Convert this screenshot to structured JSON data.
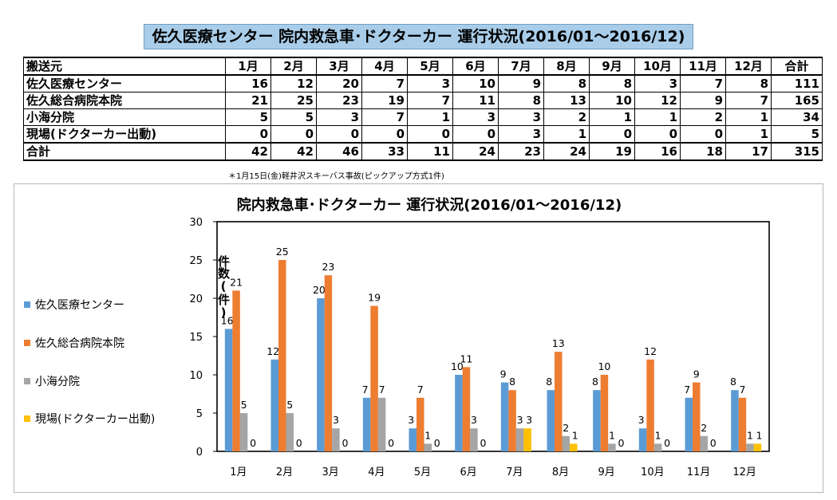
{
  "page": {
    "title": "佐久医療センター 院内救急車･ドクターカー 運行状況(2016/01～2016/12)",
    "footnote": "＊1月15日(金)軽井沢スキーバス事故(ピックアップ方式1件)"
  },
  "table": {
    "headers": [
      "搬送元",
      "1月",
      "2月",
      "3月",
      "4月",
      "5月",
      "6月",
      "7月",
      "8月",
      "9月",
      "10月",
      "11月",
      "12月",
      "合計"
    ],
    "rows": [
      {
        "label": "佐久医療センター",
        "values": [
          "16",
          "12",
          "20",
          "7",
          "3",
          "10",
          "9",
          "8",
          "8",
          "3",
          "7",
          "8",
          "111"
        ]
      },
      {
        "label": "佐久総合病院本院",
        "values": [
          "21",
          "25",
          "23",
          "19",
          "7",
          "11",
          "8",
          "13",
          "10",
          "12",
          "9",
          "7",
          "165"
        ]
      },
      {
        "label": "小海分院",
        "values": [
          "5",
          "5",
          "3",
          "7",
          "1",
          "3",
          "3",
          "2",
          "1",
          "1",
          "2",
          "1",
          "34"
        ]
      },
      {
        "label": "現場(ドクターカー出動)",
        "values": [
          "0",
          "0",
          "0",
          "0",
          "0",
          "0",
          "3",
          "1",
          "0",
          "0",
          "0",
          "1",
          "5"
        ]
      }
    ],
    "total": {
      "label": "合計",
      "values": [
        "42",
        "42",
        "46",
        "33",
        "11",
        "24",
        "23",
        "24",
        "19",
        "16",
        "18",
        "17",
        "315"
      ]
    }
  },
  "chart_data": {
    "type": "bar",
    "title": "院内救急車･ドクターカー 運行状況(2016/01～2016/12)",
    "ylabel": "件数(件)",
    "xlabel": "",
    "ylim": [
      0,
      30
    ],
    "yticks": [
      0,
      5,
      10,
      15,
      20,
      25,
      30
    ],
    "grid": false,
    "legend": "left",
    "categories": [
      "1月",
      "2月",
      "3月",
      "4月",
      "5月",
      "6月",
      "7月",
      "8月",
      "9月",
      "10月",
      "11月",
      "12月"
    ],
    "series": [
      {
        "name": "佐久医療センター",
        "color": "#5b9bd5",
        "values": [
          16,
          12,
          20,
          7,
          3,
          10,
          9,
          8,
          8,
          3,
          7,
          8
        ]
      },
      {
        "name": "佐久総合病院本院",
        "color": "#ed7d31",
        "values": [
          21,
          25,
          23,
          19,
          7,
          11,
          8,
          13,
          10,
          12,
          9,
          7
        ]
      },
      {
        "name": "小海分院",
        "color": "#a5a5a5",
        "values": [
          5,
          5,
          3,
          7,
          1,
          3,
          3,
          2,
          1,
          1,
          2,
          1
        ]
      },
      {
        "name": "現場(ドクターカー出動)",
        "color": "#ffc000",
        "values": [
          0,
          0,
          0,
          0,
          0,
          0,
          3,
          1,
          0,
          0,
          0,
          1
        ]
      }
    ]
  }
}
